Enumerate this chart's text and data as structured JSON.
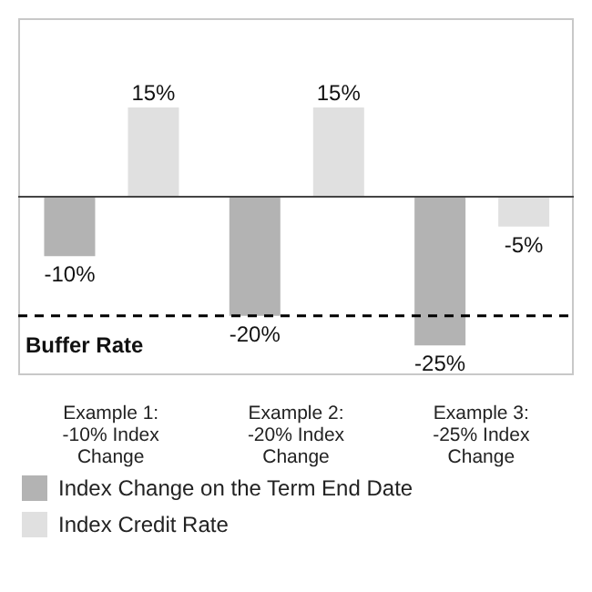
{
  "chart_data": {
    "type": "bar",
    "categories": [
      "Example 1:\n-10% Index\nChange",
      "Example 2:\n-20% Index\nChange",
      "Example 3:\n-25% Index\nChange"
    ],
    "series": [
      {
        "name": "Index Change on the Term End Date",
        "color": "#b3b3b3",
        "values": [
          -10,
          -20,
          -25
        ],
        "value_labels": [
          "-10%",
          "-20%",
          "-25%"
        ]
      },
      {
        "name": "Index Credit Rate",
        "color": "#e0e0e0",
        "values": [
          15,
          15,
          -5
        ],
        "value_labels": [
          "15%",
          "15%",
          "-5%"
        ]
      }
    ],
    "ref_lines": [
      {
        "axis": "y",
        "value": -20,
        "label": "Buffer Rate",
        "line_style": "dashed",
        "color": "#000000"
      }
    ],
    "legend": "bottom"
  }
}
